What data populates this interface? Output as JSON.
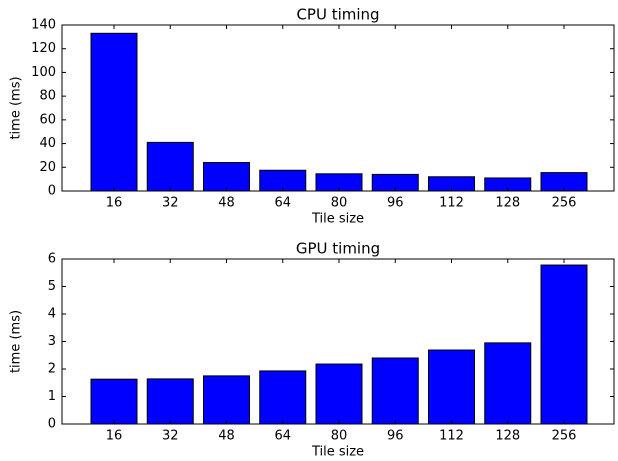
{
  "chart_data": [
    {
      "type": "bar",
      "title": "CPU timing",
      "x_label": "Tile size",
      "y_label": "time (ms)",
      "categories": [
        "16",
        "32",
        "48",
        "64",
        "80",
        "96",
        "112",
        "128",
        "256"
      ],
      "values": [
        133,
        41,
        24,
        17.5,
        14.5,
        14,
        12,
        11,
        15.5
      ],
      "color": "#0000ff",
      "ylim": [
        0,
        140
      ],
      "yticks": [
        0,
        20,
        40,
        60,
        80,
        100,
        120,
        140
      ]
    },
    {
      "type": "bar",
      "title": "GPU timing",
      "x_label": "Tile size",
      "y_label": "time (ms)",
      "categories": [
        "16",
        "32",
        "48",
        "64",
        "80",
        "96",
        "112",
        "128",
        "256"
      ],
      "values": [
        1.63,
        1.64,
        1.75,
        1.93,
        2.18,
        2.4,
        2.69,
        2.95,
        5.78
      ],
      "color": "#0000ff",
      "ylim": [
        0,
        6
      ],
      "yticks": [
        0,
        1,
        2,
        3,
        4,
        5,
        6
      ]
    }
  ]
}
